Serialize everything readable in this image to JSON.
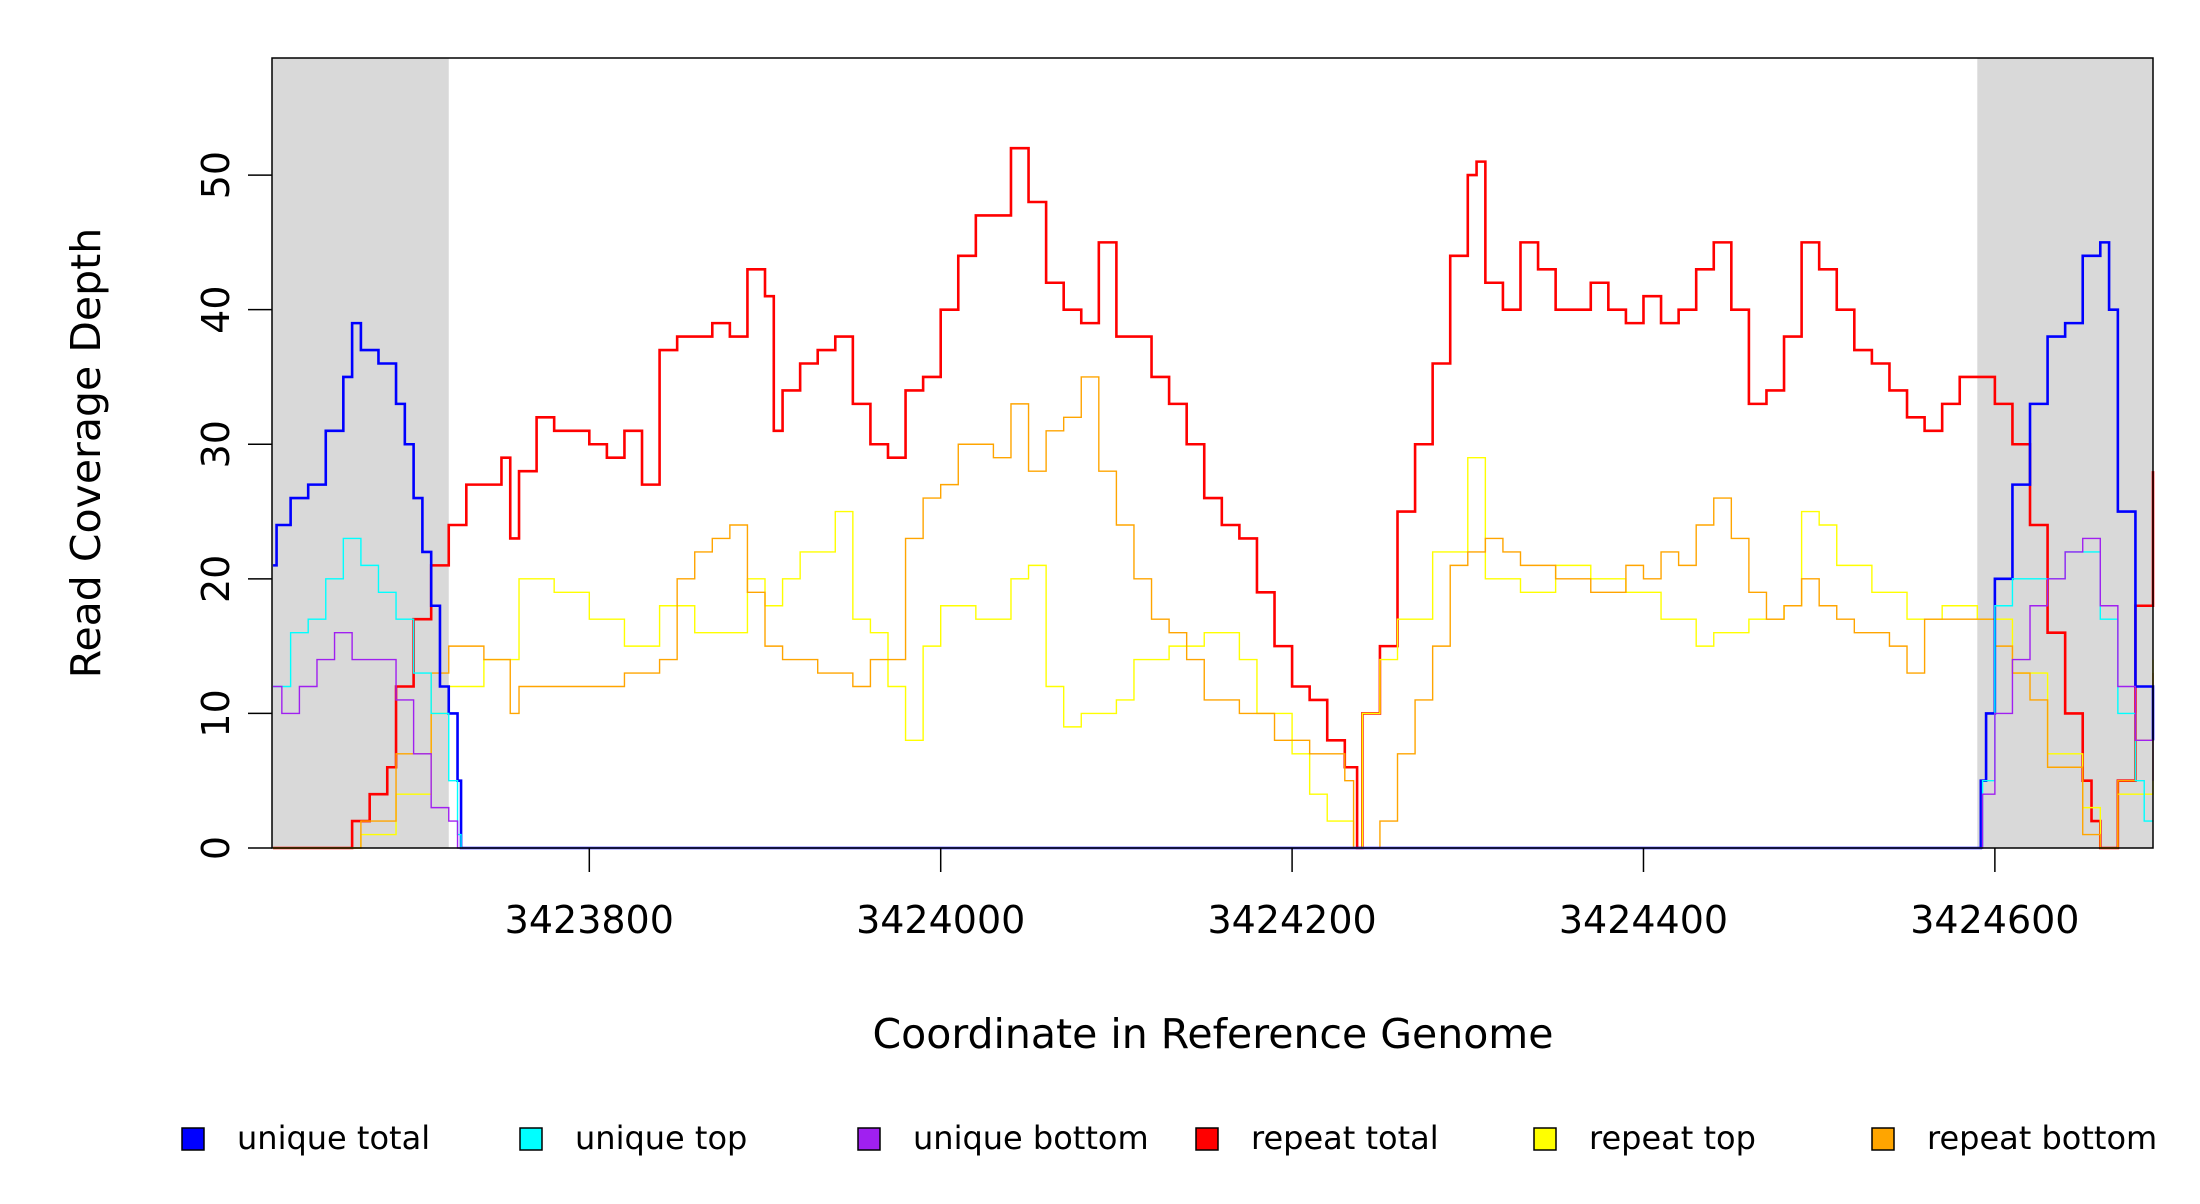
{
  "chart_data": {
    "type": "line",
    "title": "",
    "xlabel": "Coordinate in Reference Genome",
    "ylabel": "Read Coverage Depth",
    "xlim": [
      3423619.4,
      3424690
    ],
    "ylim": [
      0,
      58.7
    ],
    "xticks": [
      3423800,
      3424000,
      3424200,
      3424400,
      3424600
    ],
    "xtick_labels": [
      "3423800",
      "3424000",
      "3424200",
      "3424400",
      "3424600"
    ],
    "yticks": [
      0,
      10,
      20,
      30,
      40,
      50
    ],
    "ytick_labels": [
      "0",
      "10",
      "20",
      "30",
      "40",
      "50"
    ],
    "shaded_regions": [
      [
        3423619.4,
        3423720
      ],
      [
        3424590,
        3424690
      ]
    ],
    "shade_color": "#d9d9d9",
    "legend_placement": "bottom",
    "series": [
      {
        "name": "repeat total",
        "color": "#ff0000",
        "width": 2.6,
        "x": [
          3423620,
          3423660,
          3423665,
          3423675,
          3423685,
          3423690,
          3423700,
          3423710,
          3423720,
          3423730,
          3423740,
          3423750,
          3423755,
          3423760,
          3423770,
          3423780,
          3423790,
          3423800,
          3423810,
          3423820,
          3423830,
          3423840,
          3423850,
          3423860,
          3423870,
          3423880,
          3423890,
          3423900,
          3423905,
          3423910,
          3423920,
          3423930,
          3423940,
          3423950,
          3423960,
          3423970,
          3423980,
          3423990,
          3424000,
          3424010,
          3424020,
          3424030,
          3424040,
          3424050,
          3424060,
          3424070,
          3424080,
          3424090,
          3424100,
          3424110,
          3424120,
          3424130,
          3424140,
          3424150,
          3424160,
          3424170,
          3424180,
          3424190,
          3424200,
          3424210,
          3424220,
          3424230,
          3424237,
          3424240,
          3424250,
          3424260,
          3424270,
          3424280,
          3424290,
          3424300,
          3424305,
          3424310,
          3424320,
          3424330,
          3424340,
          3424350,
          3424360,
          3424370,
          3424380,
          3424390,
          3424400,
          3424410,
          3424420,
          3424430,
          3424440,
          3424450,
          3424460,
          3424470,
          3424480,
          3424490,
          3424500,
          3424510,
          3424520,
          3424530,
          3424540,
          3424550,
          3424560,
          3424570,
          3424580,
          3424590,
          3424600,
          3424610,
          3424620,
          3424630,
          3424640,
          3424650,
          3424655,
          3424660,
          3424670,
          3424680,
          3424690
        ],
        "y": [
          0,
          0,
          2,
          4,
          6,
          12,
          17,
          21,
          24,
          27,
          27,
          29,
          23,
          28,
          32,
          31,
          31,
          30,
          29,
          31,
          27,
          37,
          38,
          38,
          39,
          38,
          43,
          41,
          31,
          34,
          36,
          37,
          38,
          33,
          30,
          29,
          34,
          35,
          40,
          44,
          47,
          47,
          52,
          48,
          42,
          40,
          39,
          45,
          38,
          38,
          35,
          33,
          30,
          26,
          24,
          23,
          19,
          15,
          12,
          11,
          8,
          6,
          0,
          10,
          15,
          25,
          30,
          36,
          44,
          50,
          51,
          42,
          40,
          45,
          43,
          40,
          40,
          42,
          40,
          39,
          41,
          39,
          40,
          43,
          45,
          40,
          33,
          34,
          38,
          45,
          43,
          40,
          37,
          36,
          34,
          32,
          31,
          33,
          35,
          35,
          33,
          30,
          24,
          16,
          10,
          5,
          2,
          0,
          5,
          18,
          28
        ]
      },
      {
        "name": "repeat top",
        "color": "#ffff00",
        "width": 1.4,
        "x": [
          3423620,
          3423660,
          3423670,
          3423690,
          3423710,
          3423720,
          3423740,
          3423760,
          3423780,
          3423800,
          3423820,
          3423840,
          3423860,
          3423880,
          3423890,
          3423900,
          3423910,
          3423920,
          3423940,
          3423950,
          3423960,
          3423970,
          3423980,
          3423990,
          3424000,
          3424020,
          3424040,
          3424050,
          3424060,
          3424070,
          3424080,
          3424100,
          3424110,
          3424130,
          3424150,
          3424170,
          3424180,
          3424200,
          3424210,
          3424220,
          3424235,
          3424240,
          3424250,
          3424260,
          3424280,
          3424300,
          3424310,
          3424330,
          3424350,
          3424370,
          3424390,
          3424410,
          3424430,
          3424440,
          3424460,
          3424480,
          3424490,
          3424500,
          3424510,
          3424530,
          3424550,
          3424570,
          3424590,
          3424610,
          3424630,
          3424650,
          3424660,
          3424670,
          3424690
        ],
        "y": [
          0,
          0,
          1,
          4,
          10,
          12,
          14,
          20,
          19,
          17,
          15,
          18,
          16,
          16,
          20,
          18,
          20,
          22,
          25,
          17,
          16,
          12,
          8,
          15,
          18,
          17,
          20,
          21,
          12,
          9,
          10,
          11,
          14,
          15,
          16,
          14,
          10,
          7,
          4,
          2,
          0,
          10,
          14,
          17,
          22,
          29,
          20,
          19,
          21,
          20,
          19,
          17,
          15,
          16,
          17,
          18,
          25,
          24,
          21,
          19,
          17,
          18,
          17,
          13,
          7,
          3,
          0,
          4,
          14
        ]
      },
      {
        "name": "repeat bottom",
        "color": "#ffa500",
        "width": 1.4,
        "x": [
          3423620,
          3423660,
          3423670,
          3423690,
          3423710,
          3423720,
          3423740,
          3423755,
          3423760,
          3423780,
          3423800,
          3423820,
          3423840,
          3423850,
          3423860,
          3423870,
          3423880,
          3423890,
          3423900,
          3423910,
          3423930,
          3423950,
          3423960,
          3423980,
          3423990,
          3424000,
          3424010,
          3424030,
          3424040,
          3424050,
          3424060,
          3424070,
          3424080,
          3424090,
          3424100,
          3424110,
          3424120,
          3424130,
          3424140,
          3424150,
          3424170,
          3424190,
          3424210,
          3424230,
          3424235,
          3424250,
          3424260,
          3424270,
          3424280,
          3424290,
          3424300,
          3424310,
          3424320,
          3424330,
          3424350,
          3424370,
          3424390,
          3424400,
          3424410,
          3424420,
          3424430,
          3424440,
          3424450,
          3424460,
          3424470,
          3424480,
          3424490,
          3424500,
          3424510,
          3424520,
          3424540,
          3424550,
          3424560,
          3424580,
          3424590,
          3424600,
          3424610,
          3424620,
          3424630,
          3424650,
          3424660,
          3424670,
          3424680,
          3424690
        ],
        "y": [
          0,
          0,
          2,
          7,
          13,
          15,
          14,
          10,
          12,
          12,
          12,
          13,
          14,
          20,
          22,
          23,
          24,
          19,
          15,
          14,
          13,
          12,
          14,
          23,
          26,
          27,
          30,
          29,
          33,
          28,
          31,
          32,
          35,
          28,
          24,
          20,
          17,
          16,
          14,
          11,
          10,
          8,
          7,
          5,
          0,
          2,
          7,
          11,
          15,
          21,
          22,
          23,
          22,
          21,
          20,
          19,
          21,
          20,
          22,
          21,
          24,
          26,
          23,
          19,
          17,
          18,
          20,
          18,
          17,
          16,
          15,
          13,
          17,
          17,
          17,
          15,
          13,
          11,
          6,
          1,
          0,
          5,
          8,
          13
        ]
      },
      {
        "name": "unique total",
        "color": "#0000ff",
        "width": 2.6,
        "x": [
          3423620,
          3423622,
          3423630,
          3423640,
          3423650,
          3423660,
          3423665,
          3423670,
          3423680,
          3423690,
          3423695,
          3423700,
          3423705,
          3423710,
          3423715,
          3423720,
          3423725,
          3423727,
          3424590,
          3424592,
          3424595,
          3424600,
          3424610,
          3424620,
          3424630,
          3424640,
          3424650,
          3424660,
          3424665,
          3424670,
          3424680,
          3424690
        ],
        "y": [
          21,
          24,
          26,
          27,
          31,
          35,
          39,
          37,
          36,
          33,
          30,
          26,
          22,
          18,
          12,
          10,
          5,
          0,
          0,
          5,
          10,
          20,
          27,
          33,
          38,
          39,
          44,
          45,
          40,
          25,
          12,
          8
        ]
      },
      {
        "name": "unique top",
        "color": "#00ffff",
        "width": 1.4,
        "x": [
          3423620,
          3423630,
          3423640,
          3423650,
          3423660,
          3423670,
          3423680,
          3423690,
          3423700,
          3423710,
          3423720,
          3423725,
          3423727,
          3424590,
          3424593,
          3424600,
          3424610,
          3424630,
          3424640,
          3424655,
          3424660,
          3424670,
          3424680,
          3424685,
          3424690
        ],
        "y": [
          12,
          16,
          17,
          20,
          23,
          21,
          19,
          17,
          13,
          10,
          5,
          1,
          0,
          0,
          5,
          18,
          20,
          20,
          22,
          22,
          17,
          10,
          5,
          2,
          2
        ]
      },
      {
        "name": "unique bottom",
        "color": "#a020f0",
        "width": 1.4,
        "x": [
          3423620,
          3423625,
          3423635,
          3423645,
          3423655,
          3423665,
          3423680,
          3423690,
          3423700,
          3423710,
          3423720,
          3423725,
          3424590,
          3424593,
          3424600,
          3424610,
          3424620,
          3424630,
          3424640,
          3424650,
          3424660,
          3424670,
          3424680,
          3424690
        ],
        "y": [
          12,
          10,
          12,
          14,
          16,
          14,
          14,
          11,
          7,
          3,
          2,
          0,
          0,
          4,
          10,
          14,
          18,
          20,
          22,
          23,
          18,
          12,
          8,
          5
        ]
      }
    ],
    "legend": [
      {
        "label": "unique total",
        "color": "#0000ff"
      },
      {
        "label": "unique top",
        "color": "#00ffff"
      },
      {
        "label": "unique bottom",
        "color": "#a020f0"
      },
      {
        "label": "repeat total",
        "color": "#ff0000"
      },
      {
        "label": "repeat top",
        "color": "#ffff00"
      },
      {
        "label": "repeat bottom",
        "color": "#ffa500"
      }
    ]
  }
}
